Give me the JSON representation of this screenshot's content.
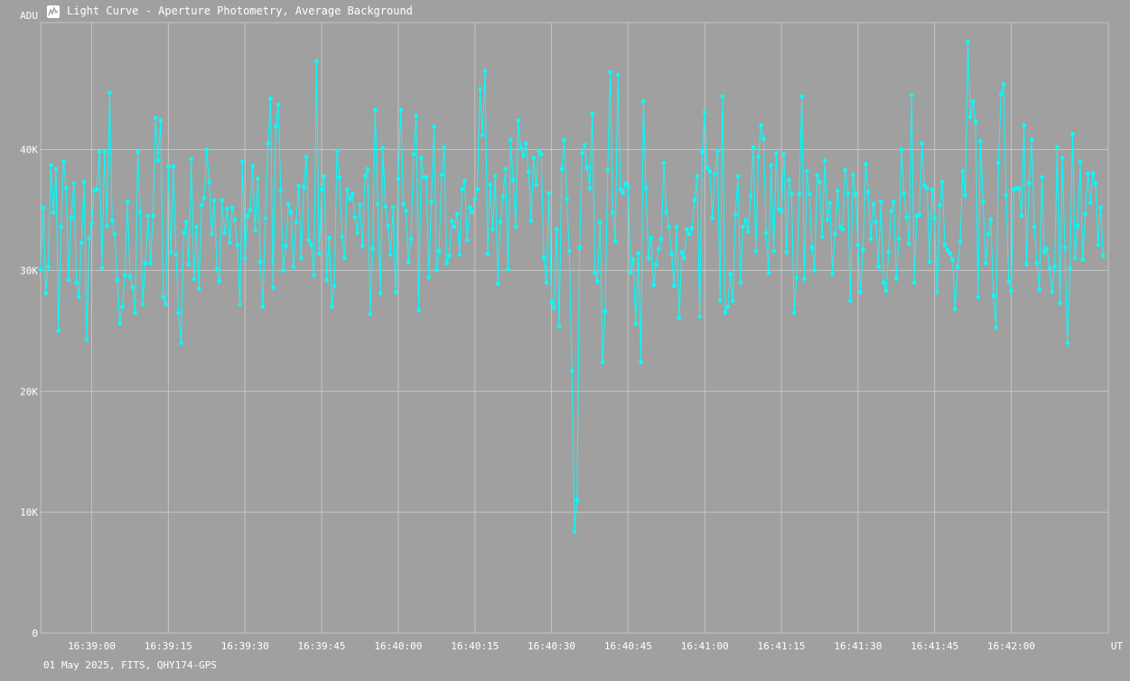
{
  "window": {
    "title": "Light Curve - Aperture Photometry, Average Background",
    "icon": "light-curve-app-icon"
  },
  "footer": {
    "text": "01 May 2025, FITS, QHY174-GPS"
  },
  "colors": {
    "background": "#a0a0a0",
    "grid": "#c4c4c4",
    "series": "#00ffff",
    "text": "#ffffff"
  },
  "chart_data": {
    "type": "line",
    "title": "Light Curve - Aperture Photometry, Average Background",
    "ylabel": "ADU",
    "xlabel": "UT",
    "ylim": [
      0,
      50500
    ],
    "xlim": [
      "16:38:50",
      "16:42:19"
    ],
    "grid": true,
    "markers": true,
    "x_ticks": [
      "16:39:00",
      "16:39:15",
      "16:39:30",
      "16:39:45",
      "16:40:00",
      "16:40:15",
      "16:40:30",
      "16:40:45",
      "16:41:00",
      "16:41:15",
      "16:41:30",
      "16:41:45",
      "16:42:00"
    ],
    "y_ticks": [
      {
        "value": 0,
        "label": "0"
      },
      {
        "value": 10000,
        "label": "10K"
      },
      {
        "value": 20000,
        "label": "20K"
      },
      {
        "value": 30000,
        "label": "30K"
      },
      {
        "value": 40000,
        "label": "40K"
      }
    ],
    "x_start": "16:38:50",
    "sample_interval_s": 0.5,
    "series": [
      {
        "values": [
          30100,
          35200,
          28100,
          30300,
          38700,
          34800,
          38400,
          25000,
          33600,
          39000,
          36800,
          29200,
          34400,
          37200,
          29000,
          27800,
          32300,
          37300,
          24300,
          32600,
          33900,
          36600,
          36700,
          39800,
          30200,
          39800,
          33700,
          44700,
          34100,
          33000,
          29200,
          25600,
          27000,
          29600,
          35700,
          29500,
          28600,
          26500,
          39800,
          34800,
          27200,
          30600,
          34500,
          30600,
          34500,
          42600,
          39100,
          42400,
          27800,
          27200,
          38600,
          31500,
          38600,
          31300,
          26500,
          24000,
          33100,
          34000,
          30500,
          39200,
          29300,
          33600,
          28500,
          35400,
          36000,
          40000,
          37300,
          33000,
          35800,
          30100,
          29100,
          35800,
          33100,
          35100,
          32300,
          35200,
          34200,
          32100,
          27200,
          39000,
          31000,
          34500,
          35000,
          38600,
          33300,
          37600,
          30700,
          27000,
          34300,
          40500,
          44200,
          28600,
          41900,
          43700,
          36600,
          30000,
          32000,
          35500,
          34800,
          30300,
          34000,
          37000,
          31000,
          36900,
          39400,
          32500,
          32100,
          29600,
          47300,
          31400,
          36700,
          37800,
          29200,
          32700,
          27000,
          28700,
          39900,
          37700,
          32800,
          31000,
          36700,
          35900,
          36300,
          34400,
          33100,
          35400,
          32000,
          37800,
          38400,
          26400,
          31800,
          43300,
          35500,
          28100,
          40100,
          35300,
          33700,
          31300,
          35200,
          28200,
          37600,
          43300,
          35500,
          34900,
          30700,
          32600,
          39600,
          42800,
          26700,
          39300,
          37700,
          37700,
          29400,
          35700,
          41900,
          30000,
          31600,
          37900,
          40200,
          30600,
          31200,
          34100,
          33600,
          34700,
          31300,
          36700,
          37400,
          32500,
          35200,
          34800,
          35900,
          36700,
          45000,
          41200,
          46500,
          31400,
          37100,
          33400,
          37800,
          28900,
          34000,
          36100,
          38400,
          30100,
          40800,
          37500,
          33600,
          42400,
          40100,
          39500,
          40500,
          38200,
          34100,
          39300,
          37100,
          39900,
          39600,
          31100,
          29000,
          36400,
          27400,
          26900,
          33400,
          25400,
          38400,
          40800,
          35900,
          31600,
          21700,
          8400,
          11000,
          31900,
          39700,
          40400,
          38500,
          36800,
          43000,
          29800,
          29100,
          34000,
          22400,
          26600,
          38300,
          46400,
          34800,
          32400,
          46200,
          36700,
          36400,
          37200,
          36900,
          29800,
          30900,
          25600,
          31400,
          22400,
          44000,
          36800,
          31000,
          32700,
          28800,
          30500,
          31800,
          32600,
          38900,
          34800,
          33600,
          31400,
          28700,
          33600,
          26100,
          31500,
          31000,
          33400,
          33000,
          33500,
          35800,
          37800,
          26200,
          39800,
          43100,
          38500,
          38200,
          34300,
          38000,
          39900,
          27500,
          44400,
          26500,
          27000,
          29700,
          27500,
          34600,
          37800,
          29000,
          33600,
          34200,
          33200,
          36200,
          40200,
          31600,
          39400,
          42000,
          40900,
          33100,
          29800,
          38700,
          31600,
          39700,
          35100,
          34900,
          39600,
          31500,
          37500,
          36300,
          26500,
          29400,
          36300,
          44400,
          29300,
          38200,
          36300,
          31900,
          30000,
          37900,
          37300,
          32800,
          39100,
          34200,
          35600,
          29700,
          33000,
          36600,
          33600,
          33400,
          38300,
          36400,
          27500,
          37900,
          36300,
          32100,
          28200,
          31700,
          38800,
          36500,
          32600,
          35500,
          34000,
          30300,
          35700,
          29000,
          28300,
          31500,
          34900,
          35700,
          29300,
          32600,
          40000,
          36400,
          34400,
          32200,
          44500,
          29000,
          34500,
          34600,
          40500,
          37000,
          36800,
          30700,
          36700,
          34300,
          28200,
          35400,
          37300,
          32100,
          31700,
          31400,
          30900,
          26800,
          30300,
          32400,
          38200,
          36200,
          48900,
          42700,
          44000,
          42300,
          27800,
          40700,
          35700,
          30600,
          33000,
          34200,
          27900,
          25300,
          38900,
          44600,
          45400,
          36200,
          29100,
          28300,
          36700,
          36800,
          36800,
          34500,
          42000,
          30500,
          37200,
          40800,
          33600,
          30600,
          28400,
          37700,
          31500,
          31800,
          30200,
          28200,
          30300,
          40200,
          27300,
          39300,
          31900,
          24000,
          30200,
          41300,
          31000,
          33700,
          39000,
          30900,
          34700,
          38000,
          35600,
          38000,
          37200,
          32100,
          35200,
          31200
        ]
      }
    ]
  }
}
